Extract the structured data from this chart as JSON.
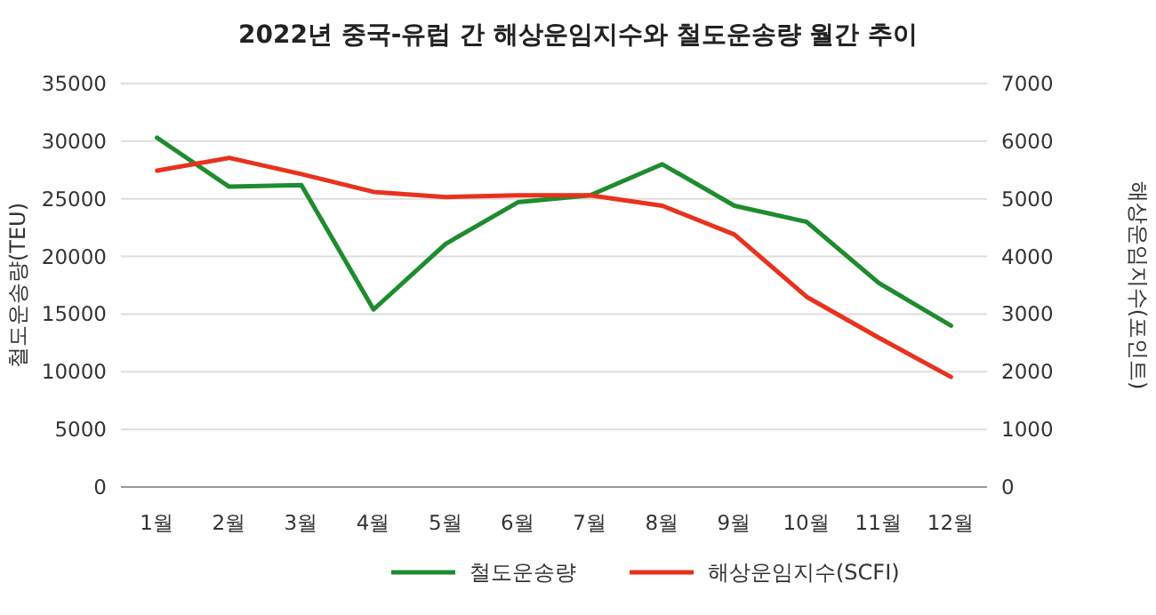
{
  "chart_data": {
    "type": "line",
    "title": "2022년 중국-유럽 간 해상운임지수와 철도운송량 월간 추이",
    "ylabel": "철도운송량(TEU)",
    "y2label": "해상운임지수(포인트)",
    "categories": [
      "1월",
      "2월",
      "3월",
      "4월",
      "5월",
      "6월",
      "7월",
      "8월",
      "9월",
      "10월",
      "11월",
      "12월"
    ],
    "series": [
      {
        "name": "철도운송량",
        "color": "#1e8c2e",
        "values": [
          30300,
          26050,
          26200,
          15400,
          21100,
          24700,
          25300,
          28000,
          24400,
          23000,
          17700,
          14000
        ]
      },
      {
        "name": "해상운임지수(SCFI)",
        "color": "#e8321e",
        "axis": "y2",
        "values": [
          5490,
          5710,
          5430,
          5120,
          5030,
          5060,
          5060,
          4880,
          4380,
          3300,
          2590,
          1910
        ]
      }
    ],
    "ylim": [
      0,
      35000
    ],
    "yticks": [
      0,
      5000,
      10000,
      15000,
      20000,
      25000,
      30000,
      35000
    ],
    "y2lim": [
      0,
      7000
    ],
    "y2ticks": [
      0,
      1000,
      2000,
      3000,
      4000,
      5000,
      6000,
      7000
    ],
    "grid": "y",
    "legend": "bottom"
  }
}
